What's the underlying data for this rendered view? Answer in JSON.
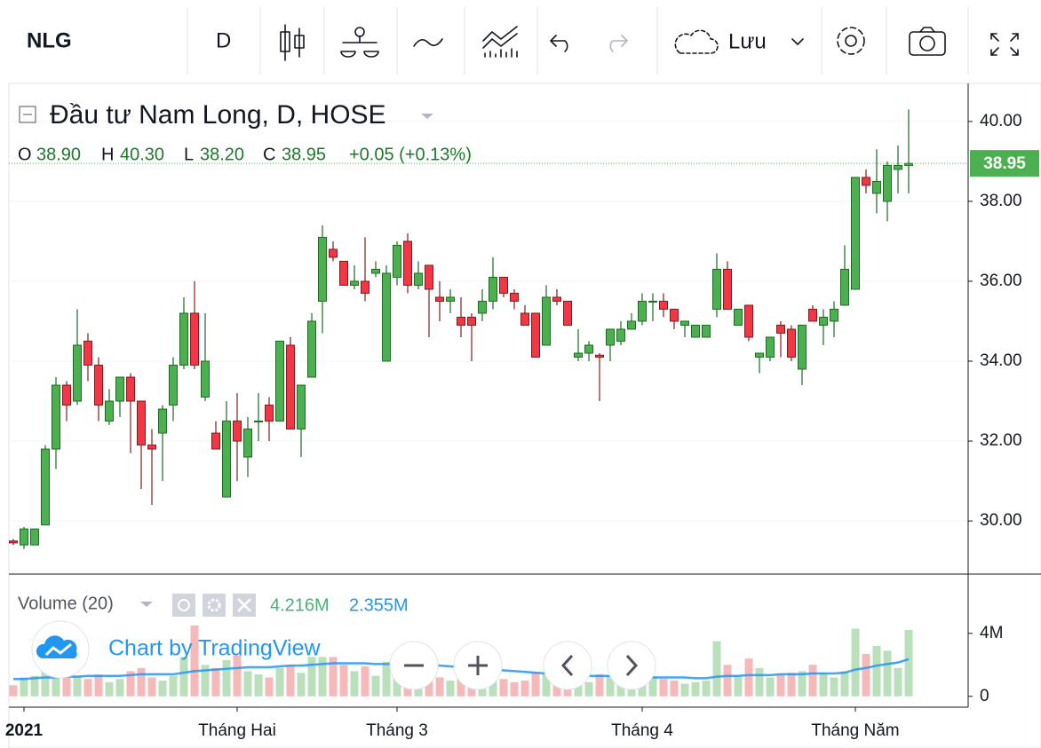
{
  "toolbar": {
    "symbol": "NLG",
    "interval": "D",
    "save": "Lưu"
  },
  "watermark": "Chart by TradingView",
  "chart_data": [
    {
      "type": "candlestick",
      "title": "Đầu tư Nam Long, D, HOSE",
      "readout": {
        "o_label": "O",
        "o": "38.90",
        "h_label": "H",
        "h": "40.30",
        "l_label": "L",
        "l": "38.20",
        "c_label": "C",
        "c": "38.95",
        "change": "+0.05 (+0.13%)",
        "last_price": "38.95"
      },
      "categories": [
        null,
        "2021",
        null,
        null,
        null,
        null,
        null,
        null,
        null,
        null,
        null,
        null,
        null,
        null,
        null,
        null,
        null,
        null,
        null,
        null,
        null,
        "Tháng Hai",
        null,
        null,
        null,
        null,
        null,
        null,
        null,
        null,
        null,
        null,
        null,
        null,
        null,
        null,
        "Tháng 3",
        null,
        null,
        null,
        null,
        null,
        null,
        null,
        null,
        null,
        null,
        null,
        null,
        null,
        null,
        null,
        null,
        null,
        null,
        null,
        null,
        null,
        null,
        "Tháng 4",
        null,
        null,
        null,
        null,
        null,
        null,
        null,
        null,
        null,
        null,
        null,
        null,
        null,
        null,
        null,
        null,
        null,
        null,
        null,
        "Tháng Năm",
        null,
        null,
        null,
        null,
        null
      ],
      "open": [
        29.5,
        29.4,
        29.4,
        29.9,
        31.8,
        33.4,
        33.0,
        34.5,
        33.9,
        32.5,
        33.0,
        33.6,
        33.0,
        31.9,
        32.2,
        32.9,
        33.9,
        35.2,
        33.1,
        32.2,
        30.6,
        32.5,
        31.6,
        32.5,
        32.9,
        32.5,
        34.4,
        32.3,
        33.6,
        35.5,
        36.8,
        36.5,
        35.9,
        36.0,
        36.2,
        34.0,
        36.1,
        37.0,
        35.9,
        36.4,
        35.6,
        35.5,
        35.1,
        35.1,
        35.2,
        35.5,
        36.1,
        35.7,
        35.2,
        35.2,
        34.4,
        35.6,
        35.5,
        34.1,
        34.2,
        34.15,
        34.4,
        34.5,
        34.8,
        35.0,
        35.5,
        35.5,
        35.3,
        34.9,
        34.6,
        34.6,
        35.3,
        36.3,
        34.9,
        35.4,
        34.1,
        34.1,
        34.9,
        34.8,
        33.8,
        35.3,
        34.9,
        35.0,
        35.4,
        35.8,
        38.6,
        38.2,
        38.0,
        38.8,
        38.9
      ],
      "high": [
        29.55,
        29.85,
        29.8,
        31.9,
        33.6,
        33.5,
        35.3,
        34.7,
        34.1,
        33.3,
        33.6,
        33.7,
        33.0,
        32.3,
        32.9,
        34.1,
        35.6,
        36.0,
        35.2,
        32.5,
        33.0,
        33.2,
        32.6,
        33.2,
        33.1,
        34.5,
        34.6,
        33.4,
        35.2,
        37.4,
        37.0,
        36.5,
        36.4,
        37.1,
        36.5,
        36.4,
        37.0,
        37.2,
        36.5,
        36.4,
        36.0,
        35.8,
        35.6,
        35.2,
        35.8,
        36.6,
        36.1,
        35.8,
        35.4,
        35.2,
        35.9,
        35.8,
        35.5,
        34.8,
        34.5,
        34.2,
        34.8,
        35.0,
        35.2,
        35.7,
        35.7,
        35.7,
        35.3,
        35.0,
        34.9,
        34.9,
        36.7,
        36.5,
        35.3,
        35.4,
        34.2,
        34.6,
        35.0,
        34.9,
        34.9,
        35.4,
        35.3,
        35.5,
        36.9,
        38.6,
        38.8,
        39.3,
        39.0,
        39.4,
        40.3
      ],
      "low": [
        29.4,
        29.3,
        29.4,
        29.9,
        31.3,
        32.5,
        32.9,
        33.5,
        32.5,
        32.4,
        32.6,
        31.7,
        30.8,
        30.4,
        31.0,
        32.5,
        33.8,
        33.8,
        33.0,
        31.8,
        30.6,
        31.0,
        31.1,
        32.0,
        32.0,
        32.5,
        32.3,
        31.6,
        33.6,
        34.7,
        36.5,
        35.9,
        35.8,
        35.5,
        36.1,
        34.0,
        35.9,
        35.7,
        35.8,
        34.6,
        35.0,
        35.2,
        34.6,
        34.0,
        35.0,
        35.3,
        35.6,
        35.3,
        34.9,
        34.1,
        34.4,
        35.4,
        34.9,
        34.0,
        34.0,
        33.0,
        34.0,
        34.4,
        34.8,
        34.9,
        35.0,
        35.1,
        34.8,
        34.6,
        34.6,
        34.6,
        35.1,
        35.3,
        34.9,
        34.5,
        33.7,
        34.0,
        34.1,
        34.0,
        33.4,
        35.0,
        34.4,
        34.6,
        35.4,
        35.8,
        38.2,
        37.7,
        37.5,
        38.2,
        38.2
      ],
      "close": [
        29.45,
        29.8,
        29.8,
        31.8,
        33.4,
        32.9,
        34.4,
        33.9,
        32.9,
        33.0,
        33.6,
        33.0,
        31.9,
        31.8,
        32.8,
        33.9,
        35.2,
        33.9,
        34.0,
        31.8,
        32.5,
        32.0,
        32.3,
        32.5,
        32.5,
        34.5,
        32.3,
        33.4,
        35.0,
        37.1,
        36.6,
        35.9,
        36.0,
        35.7,
        36.3,
        36.2,
        36.9,
        35.9,
        36.2,
        35.8,
        35.5,
        35.6,
        34.9,
        34.9,
        35.5,
        36.1,
        35.7,
        35.5,
        34.9,
        34.1,
        35.6,
        35.5,
        34.9,
        34.2,
        34.4,
        34.1,
        34.8,
        34.8,
        35.0,
        35.5,
        35.5,
        35.3,
        35.0,
        35.0,
        34.9,
        34.9,
        36.3,
        35.3,
        35.3,
        34.6,
        34.2,
        34.6,
        34.7,
        34.1,
        34.9,
        35.0,
        35.1,
        35.3,
        36.3,
        38.6,
        38.4,
        38.5,
        38.9,
        38.9,
        38.95
      ],
      "up_color": "#4caf50",
      "up_border": "#1e6b24",
      "down_color": "#f23645",
      "down_border": "#7f1d1d",
      "ylim": [
        28.67,
        40.93
      ],
      "yticks": [
        {
          "value": 30,
          "label": "30.00"
        },
        {
          "value": 32,
          "label": "32.00"
        },
        {
          "value": 34,
          "label": "34.00"
        },
        {
          "value": 36,
          "label": "36.00"
        },
        {
          "value": 38,
          "label": "38.00"
        },
        {
          "value": 40,
          "label": "40.00"
        }
      ],
      "grid": true,
      "price_line_color": "#4caf50"
    },
    {
      "type": "volume",
      "title": "Volume (20)",
      "readout": {
        "volume": "4.216M",
        "ma": "2.355M"
      },
      "volume": [
        0.7,
        1.2,
        1.3,
        1.8,
        1.5,
        1.2,
        1.3,
        1.1,
        1.4,
        0.9,
        1.1,
        1.6,
        1.8,
        1.2,
        1.0,
        1.3,
        2.5,
        4.5,
        2.0,
        1.8,
        2.3,
        2.6,
        1.6,
        1.4,
        1.2,
        1.8,
        2.0,
        1.5,
        2.5,
        2.5,
        2.5,
        2.0,
        1.6,
        1.9,
        1.3,
        2.2,
        1.8,
        2.4,
        1.4,
        1.9,
        1.2,
        1.0,
        1.3,
        1.1,
        1.0,
        1.6,
        1.1,
        0.9,
        1.0,
        1.5,
        1.4,
        0.8,
        1.2,
        1.3,
        0.9,
        1.4,
        1.3,
        1.0,
        0.9,
        1.4,
        1.3,
        1.1,
        1.0,
        0.8,
        0.9,
        1.0,
        3.5,
        2.0,
        1.3,
        2.4,
        1.8,
        1.2,
        1.4,
        1.5,
        1.6,
        2.0,
        1.5,
        1.2,
        1.6,
        4.3,
        2.7,
        3.2,
        2.9,
        1.8,
        4.216
      ],
      "ma": [
        1.1,
        1.1,
        1.15,
        1.2,
        1.2,
        1.25,
        1.25,
        1.3,
        1.3,
        1.3,
        1.3,
        1.35,
        1.4,
        1.4,
        1.4,
        1.4,
        1.5,
        1.6,
        1.65,
        1.7,
        1.75,
        1.8,
        1.85,
        1.85,
        1.85,
        1.9,
        1.95,
        1.95,
        2.0,
        2.05,
        2.1,
        2.1,
        2.1,
        2.1,
        2.05,
        2.05,
        2.05,
        2.05,
        2.0,
        2.0,
        1.95,
        1.9,
        1.85,
        1.8,
        1.75,
        1.7,
        1.65,
        1.6,
        1.55,
        1.5,
        1.45,
        1.4,
        1.4,
        1.35,
        1.3,
        1.3,
        1.3,
        1.25,
        1.25,
        1.25,
        1.2,
        1.2,
        1.2,
        1.2,
        1.15,
        1.15,
        1.25,
        1.3,
        1.3,
        1.35,
        1.35,
        1.35,
        1.4,
        1.4,
        1.4,
        1.45,
        1.45,
        1.45,
        1.5,
        1.7,
        1.8,
        1.95,
        2.05,
        2.15,
        2.355
      ],
      "up_color": "#b9dfbb",
      "down_color": "#f6b8b8",
      "ma_color": "#2196f3",
      "ylim": [
        -0.69,
        7.71
      ],
      "yticks": [
        0,
        {
          "value": 4,
          "label": "4M"
        }
      ]
    }
  ]
}
